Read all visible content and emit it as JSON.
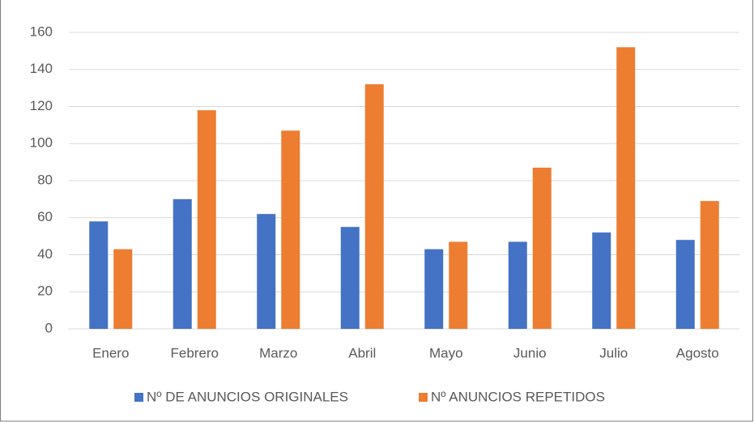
{
  "chart_data": {
    "type": "bar",
    "categories": [
      "Enero",
      "Febrero",
      "Marzo",
      "Abril",
      "Mayo",
      "Junio",
      "Julio",
      "Agosto"
    ],
    "series": [
      {
        "name": "Nº DE ANUNCIOS ORIGINALES",
        "color": "#4472c4",
        "values": [
          58,
          70,
          62,
          55,
          43,
          47,
          52,
          48
        ]
      },
      {
        "name": "Nº ANUNCIOS REPETIDOS",
        "color": "#ed7d31",
        "values": [
          43,
          118,
          107,
          132,
          47,
          87,
          152,
          69
        ]
      }
    ],
    "ylim": [
      0,
      160
    ],
    "yticks": [
      0,
      20,
      40,
      60,
      80,
      100,
      120,
      140,
      160
    ],
    "grid": true,
    "legend": "bottom"
  }
}
